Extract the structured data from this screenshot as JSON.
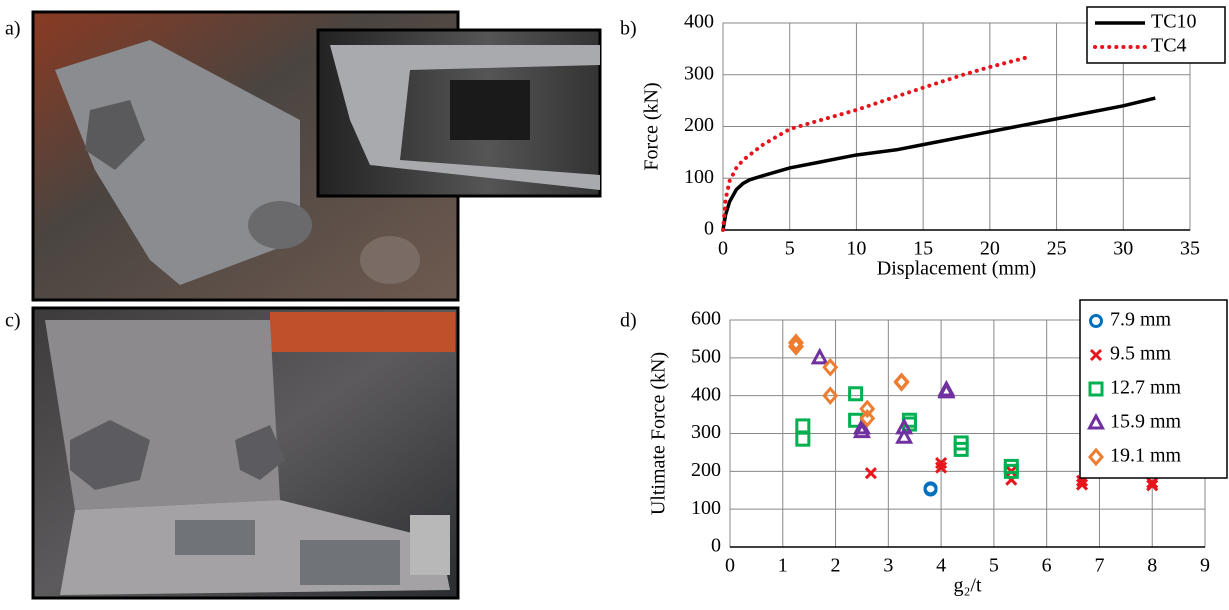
{
  "photo_labels": [
    "a)",
    "c)"
  ],
  "chart_data": [
    {
      "type": "line",
      "label": "b)",
      "x_label": "Displacement (mm)",
      "y_label": "Force (kN)",
      "xlim": [
        0,
        35
      ],
      "xticks": [
        0,
        5,
        10,
        15,
        20,
        25,
        30,
        35
      ],
      "ylim": [
        0,
        400
      ],
      "yticks": [
        0,
        100,
        200,
        300,
        400
      ],
      "grid": true,
      "legend": "upper right",
      "series": [
        {
          "name": "TC10",
          "color": "#000000",
          "dash": "solid",
          "x": [
            0,
            0.2,
            0.5,
            1,
            1.5,
            2,
            3,
            5,
            7,
            10,
            13,
            15,
            20,
            25,
            30,
            32.4
          ],
          "values": [
            0,
            30,
            55,
            78,
            90,
            97,
            105,
            120,
            130,
            145,
            155,
            165,
            190,
            215,
            240,
            255
          ]
        },
        {
          "name": "TC4",
          "color": "#e8141b",
          "dash": "dotted",
          "x": [
            0,
            0.2,
            0.5,
            1,
            1.5,
            2,
            3,
            5,
            7,
            10,
            13,
            15,
            18,
            20,
            23
          ],
          "values": [
            0,
            60,
            95,
            120,
            135,
            145,
            165,
            195,
            210,
            232,
            258,
            275,
            300,
            315,
            335
          ]
        }
      ]
    },
    {
      "type": "scatter",
      "label": "d)",
      "x_label": "g₂/t",
      "y_label": "Ultimate Force (kN)",
      "xlim": [
        0,
        9
      ],
      "xticks": [
        0,
        1,
        2,
        3,
        4,
        5,
        6,
        7,
        8,
        9
      ],
      "ylim": [
        0,
        600
      ],
      "yticks": [
        0,
        100,
        200,
        300,
        400,
        500,
        600
      ],
      "grid": true,
      "legend": "upper right",
      "series": [
        {
          "name": "7.9 mm",
          "color": "#0070c0",
          "marker": "circle",
          "x": [
            3.8,
            3.8
          ],
          "values": [
            152,
            155
          ]
        },
        {
          "name": "9.5 mm",
          "color": "#e8141b",
          "marker": "x",
          "x": [
            2.67,
            4,
            4,
            5.33,
            5.33,
            6.67,
            6.67,
            8,
            8
          ],
          "values": [
            195,
            210,
            222,
            178,
            200,
            165,
            175,
            163,
            170
          ]
        },
        {
          "name": "12.7 mm",
          "color": "#00b050",
          "marker": "square",
          "x": [
            1.38,
            1.38,
            2.38,
            2.38,
            3.4,
            3.4,
            4.38,
            4.38,
            5.33,
            5.33
          ],
          "values": [
            320,
            285,
            405,
            335,
            335,
            325,
            275,
            258,
            213,
            200
          ]
        },
        {
          "name": "15.9 mm",
          "color": "#7030a0",
          "marker": "triangle",
          "x": [
            1.7,
            2.5,
            2.5,
            3.3,
            3.3,
            4.1,
            4.1
          ],
          "values": [
            500,
            315,
            305,
            315,
            290,
            415,
            410
          ]
        },
        {
          "name": "19.1 mm",
          "color": "#ed7d31",
          "marker": "diamond",
          "x": [
            1.25,
            1.25,
            1.9,
            1.9,
            2.6,
            2.6,
            3.25,
            3.25
          ],
          "values": [
            540,
            530,
            475,
            400,
            365,
            340,
            437,
            435
          ]
        }
      ]
    }
  ]
}
